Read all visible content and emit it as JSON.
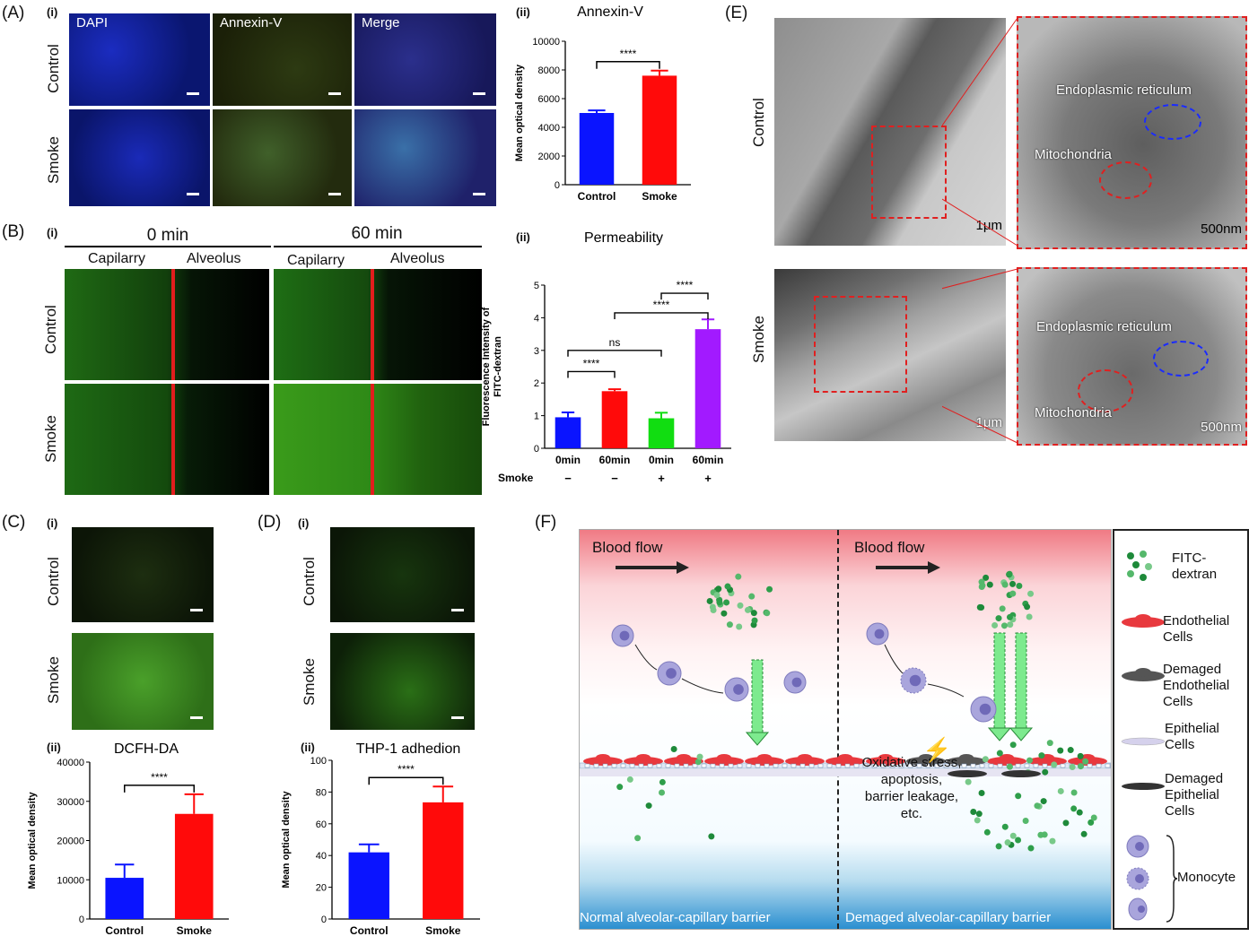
{
  "panels": {
    "A": {
      "label": "(A)",
      "sub_i": "(i)",
      "sub_ii": "(ii)",
      "columns": [
        "DAPI",
        "Annexin-V",
        "Merge"
      ],
      "rows": [
        "Control",
        "Smoke"
      ],
      "chart_title": "Annexin-V"
    },
    "B": {
      "label": "(B)",
      "sub_i": "(i)",
      "sub_ii": "(ii)",
      "time_headers": [
        "0 min",
        "60 min"
      ],
      "col_labels": [
        "Capilarry",
        "Alveolus",
        "Capilarry",
        "Alveolus"
      ],
      "rows": [
        "Control",
        "Smoke"
      ],
      "chart_title": "Permeability",
      "smoke_row_label": "Smoke",
      "smoke_signs": [
        "−",
        "−",
        "+",
        "+"
      ]
    },
    "C": {
      "label": "(C)",
      "sub_i": "(i)",
      "sub_ii": "(ii)",
      "rows": [
        "Control",
        "Smoke"
      ],
      "chart_title": "DCFH-DA"
    },
    "D": {
      "label": "(D)",
      "sub_i": "(i)",
      "sub_ii": "(ii)",
      "rows": [
        "Control",
        "Smoke"
      ],
      "chart_title": "THP-1 adhedion"
    },
    "E": {
      "label": "(E)",
      "rows": [
        "Control",
        "Smoke"
      ],
      "labels": {
        "er": "Endoplasmic reticulum",
        "mito": "Mitochondria",
        "scale1": "1μm",
        "scale2": "500nm"
      }
    },
    "F": {
      "label": "(F)",
      "blood_flow": "Blood flow",
      "normal_caption": "Normal alveolar-capillary barrier",
      "damaged_caption": "Demaged alveolar-capillary barrier",
      "stress_text": [
        "Oxidative stress,",
        "apoptosis,",
        "barrier leakage,",
        "etc."
      ],
      "legend": {
        "fitc": [
          "FITC-",
          "dextran"
        ],
        "endo": [
          "Endothelial",
          "Cells"
        ],
        "dendo": [
          "Demaged",
          "Endothelial",
          "Cells"
        ],
        "epi": [
          "Epithelial",
          "Cells"
        ],
        "depi": [
          "Demaged",
          "Epithelial",
          "Cells"
        ],
        "mono": "Monocyte"
      }
    }
  },
  "chart_data": [
    {
      "type": "bar",
      "id": "A-ii",
      "title": "Annexin-V",
      "ylabel": "Mean optical density",
      "categories": [
        "Control",
        "Smoke"
      ],
      "values": [
        5000,
        7600
      ],
      "errors": [
        180,
        350
      ],
      "ylim": [
        0,
        10000
      ],
      "yticks": [
        0,
        2000,
        4000,
        6000,
        8000,
        10000
      ],
      "colors": [
        "#0a14ff",
        "#ff0a0a"
      ],
      "significance": "****"
    },
    {
      "type": "bar",
      "id": "B-ii",
      "title": "Permeability",
      "ylabel": "Fluorescence Intensity of FITC-dextran",
      "categories": [
        "0min",
        "60min",
        "0min",
        "60min"
      ],
      "values": [
        0.95,
        1.75,
        0.92,
        3.65
      ],
      "errors": [
        0.15,
        0.06,
        0.17,
        0.3
      ],
      "ylim": [
        0,
        5
      ],
      "yticks": [
        0,
        1,
        2,
        3,
        4,
        5
      ],
      "colors": [
        "#0a14ff",
        "#ff0a0a",
        "#11dd11",
        "#a21aff"
      ],
      "comparisons": [
        {
          "a": 0,
          "b": 1,
          "label": "****"
        },
        {
          "a": 0,
          "b": 2,
          "label": "ns"
        },
        {
          "a": 1,
          "b": 3,
          "label": "****"
        },
        {
          "a": 2,
          "b": 3,
          "label": "****"
        }
      ]
    },
    {
      "type": "bar",
      "id": "C-ii",
      "title": "DCFH-DA",
      "ylabel": "Mean optical density",
      "categories": [
        "Control",
        "Smoke"
      ],
      "values": [
        10500,
        26800
      ],
      "errors": [
        3400,
        5000
      ],
      "ylim": [
        0,
        40000
      ],
      "yticks": [
        0,
        10000,
        20000,
        30000,
        40000
      ],
      "colors": [
        "#0a14ff",
        "#ff0a0a"
      ],
      "significance": "****"
    },
    {
      "type": "bar",
      "id": "D-ii",
      "title": "THP-1 adhedion",
      "ylabel": "Mean optical density",
      "categories": [
        "Control",
        "Smoke"
      ],
      "values": [
        42,
        73.5
      ],
      "errors": [
        5,
        10
      ],
      "ylim": [
        0,
        100
      ],
      "yticks": [
        0,
        20,
        40,
        60,
        80,
        100
      ],
      "colors": [
        "#0a14ff",
        "#ff0a0a"
      ],
      "significance": "****"
    }
  ]
}
